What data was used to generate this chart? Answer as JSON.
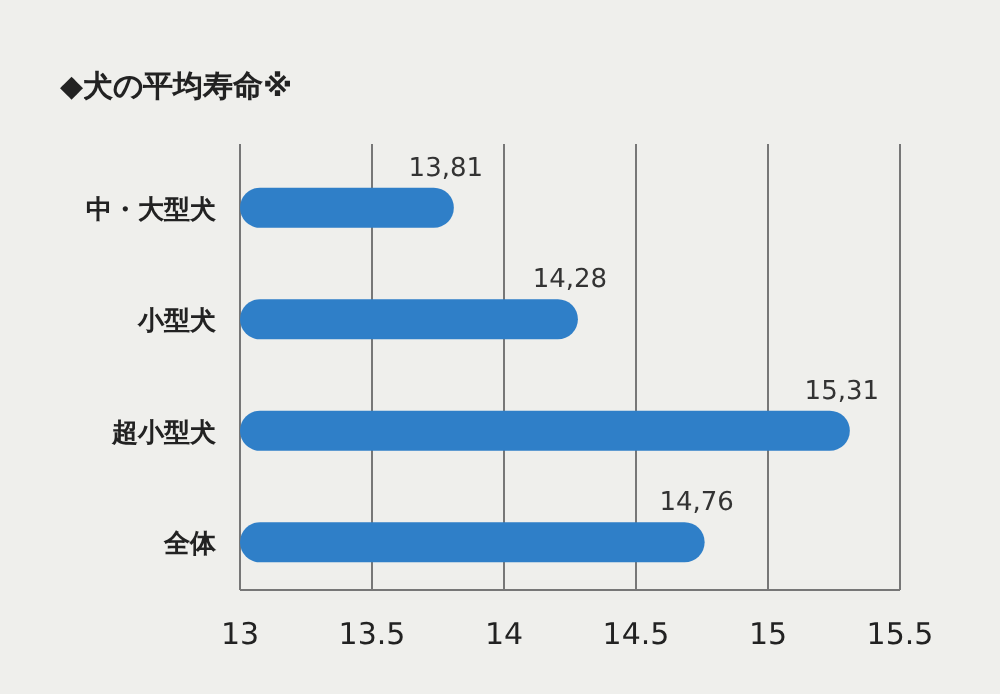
{
  "chart_data": {
    "type": "bar",
    "orientation": "horizontal",
    "title": "◆犬の平均寿命※",
    "categories": [
      "中・大型犬",
      "小型犬",
      "超小型犬",
      "全体"
    ],
    "values": [
      13.81,
      14.28,
      15.31,
      14.76
    ],
    "value_labels": [
      "13,81",
      "14,28",
      "15,31",
      "14,76"
    ],
    "color": "#2f7fc8",
    "xlim": [
      13,
      15.5
    ],
    "xticks": [
      13,
      13.5,
      14,
      14.5,
      15,
      15.5
    ],
    "grid": "x"
  }
}
